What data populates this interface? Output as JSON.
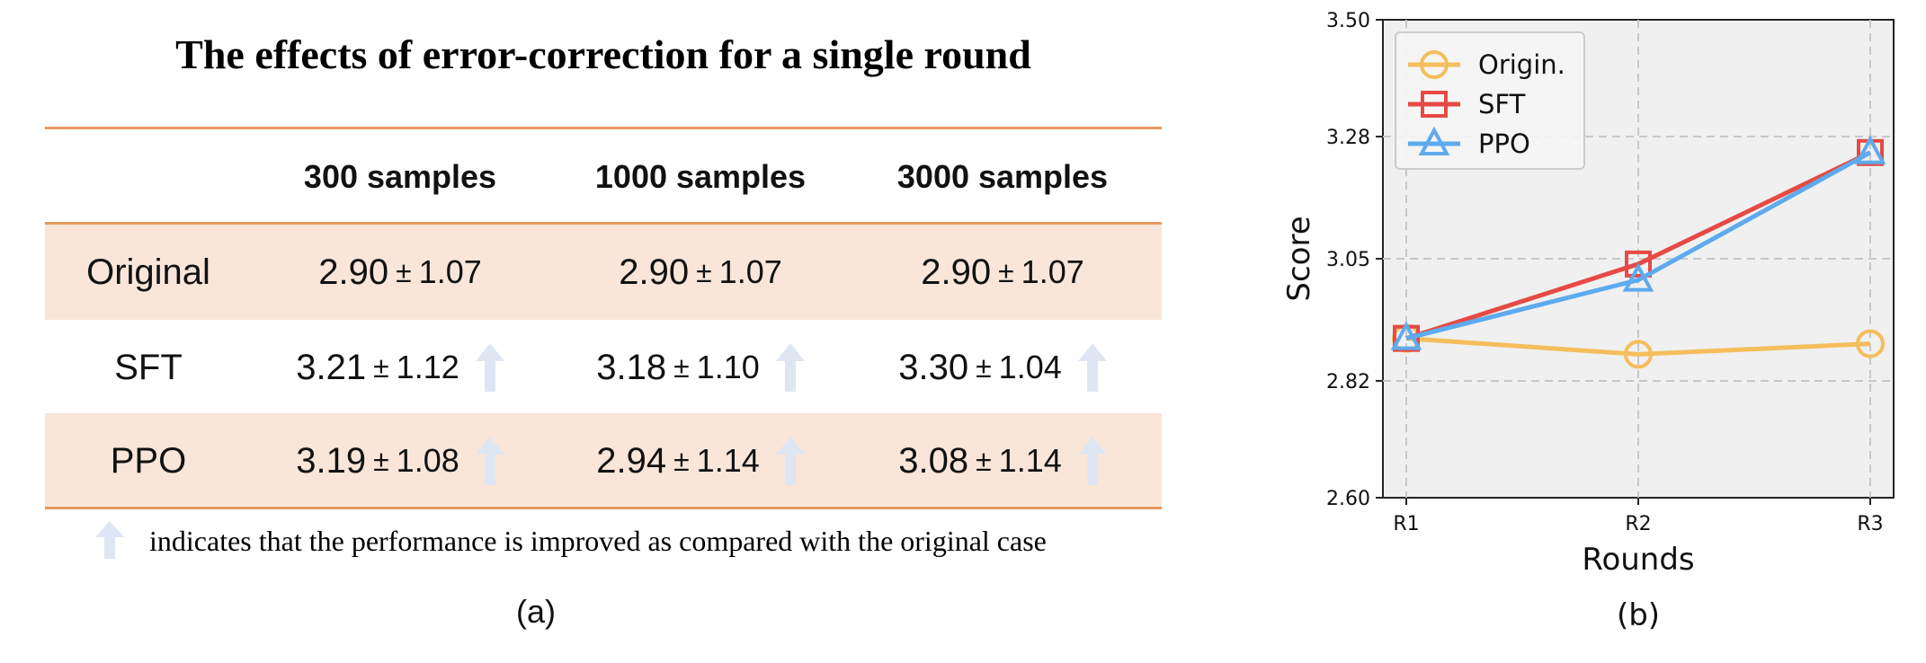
{
  "table": {
    "title": "The effects of error-correction for a single round",
    "columns": [
      "300 samples",
      "1000 samples",
      "3000 samples"
    ],
    "rows": [
      {
        "label": "Original",
        "cells": [
          {
            "mean": "2.90",
            "sd": "1.07",
            "improved": false
          },
          {
            "mean": "2.90",
            "sd": "1.07",
            "improved": false
          },
          {
            "mean": "2.90",
            "sd": "1.07",
            "improved": false
          }
        ]
      },
      {
        "label": "SFT",
        "cells": [
          {
            "mean": "3.21",
            "sd": "1.12",
            "improved": true
          },
          {
            "mean": "3.18",
            "sd": "1.10",
            "improved": true
          },
          {
            "mean": "3.30",
            "sd": "1.04",
            "improved": true
          }
        ]
      },
      {
        "label": "PPO",
        "cells": [
          {
            "mean": "3.19",
            "sd": "1.08",
            "improved": true
          },
          {
            "mean": "2.94",
            "sd": "1.14",
            "improved": true
          },
          {
            "mean": "3.08",
            "sd": "1.14",
            "improved": true
          }
        ]
      }
    ],
    "pm_symbol": "±",
    "note": "indicates that the performance is improved as compared with the original case",
    "caption": "(a)"
  },
  "colors": {
    "band": "#f9e6d9",
    "rule": "#e8995e",
    "arrow": "#dfe6f3",
    "origin": "#f5be5c",
    "sft": "#e64a44",
    "ppo": "#5eaaee",
    "plot_bg": "#f0f0f0"
  },
  "chart_data": {
    "type": "line",
    "categories": [
      "R1",
      "R2",
      "R3"
    ],
    "series": [
      {
        "name": "Origin.",
        "marker": "circle",
        "color": "#f5be5c",
        "values": [
          2.9,
          2.87,
          2.89
        ]
      },
      {
        "name": "SFT",
        "marker": "square",
        "color": "#e64a44",
        "values": [
          2.9,
          3.04,
          3.25
        ]
      },
      {
        "name": "PPO",
        "marker": "triangle",
        "color": "#5eaaee",
        "values": [
          2.9,
          3.01,
          3.25
        ]
      }
    ],
    "yticks": [
      "2.60",
      "2.82",
      "3.05",
      "3.28",
      "3.50"
    ],
    "ylim": [
      2.6,
      3.5
    ],
    "xlabel": "Rounds",
    "ylabel": "Score",
    "grid": true,
    "legend": "top-left",
    "caption": "(b)"
  }
}
